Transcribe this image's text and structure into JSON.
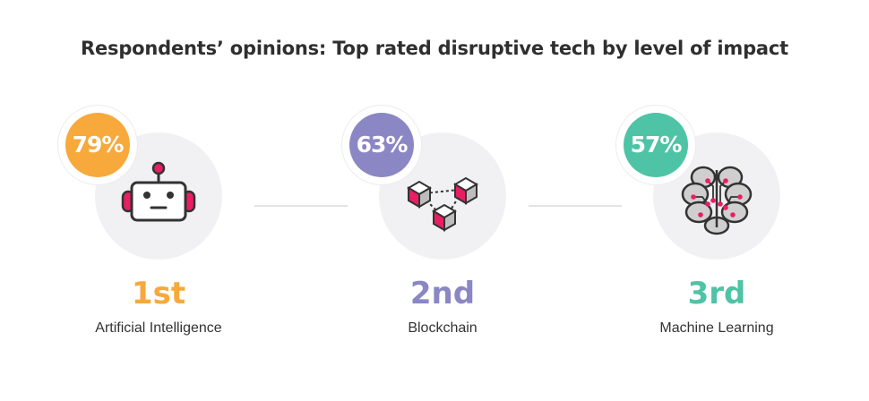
{
  "title": "Respondents’ opinions: Top rated disruptive tech by level of impact",
  "items": [
    {
      "percent": "79%",
      "rank": "1st",
      "label": "Artificial Intelligence",
      "color": "#F7A93B",
      "icon": "robot-icon"
    },
    {
      "percent": "63%",
      "rank": "2nd",
      "label": "Blockchain",
      "color": "#8A87C4",
      "icon": "blockchain-icon"
    },
    {
      "percent": "57%",
      "rank": "3rd",
      "label": "Machine Learning",
      "color": "#4FC3A6",
      "icon": "brain-icon"
    }
  ],
  "colors": {
    "accent_pink": "#E91E63",
    "text": "#333333",
    "circle_bg": "#F1F1F3"
  }
}
